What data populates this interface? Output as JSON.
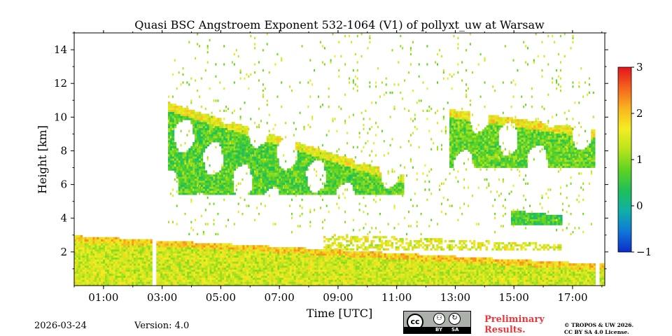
{
  "chart_data": {
    "type": "heatmap",
    "title": "Quasi BSC Angstroem Exponent 532-1064 (V1) of pollyxt_uw at Warsaw",
    "xlabel": "Time [UTC]",
    "ylabel": "Height [km]",
    "xlim_hours": [
      0.0,
      18.1
    ],
    "ylim_km": [
      0,
      15
    ],
    "x_ticks": [
      {
        "label": "01:00",
        "value": 1
      },
      {
        "label": "03:00",
        "value": 3
      },
      {
        "label": "05:00",
        "value": 5
      },
      {
        "label": "07:00",
        "value": 7
      },
      {
        "label": "09:00",
        "value": 9
      },
      {
        "label": "11:00",
        "value": 11
      },
      {
        "label": "13:00",
        "value": 13
      },
      {
        "label": "15:00",
        "value": 15
      },
      {
        "label": "17:00",
        "value": 17
      }
    ],
    "y_ticks": [
      {
        "label": "2",
        "value": 2
      },
      {
        "label": "4",
        "value": 4
      },
      {
        "label": "6",
        "value": 6
      },
      {
        "label": "8",
        "value": 8
      },
      {
        "label": "10",
        "value": 10
      },
      {
        "label": "12",
        "value": 12
      },
      {
        "label": "14",
        "value": 14
      }
    ],
    "colorbar": {
      "range": [
        -1,
        3
      ],
      "ticks": [
        {
          "label": "−1",
          "value": -1
        },
        {
          "label": "0",
          "value": 0
        },
        {
          "label": "1",
          "value": 1
        },
        {
          "label": "2",
          "value": 2
        },
        {
          "label": "3",
          "value": 3
        }
      ],
      "colors": [
        "#0b2cc9",
        "#0f78d8",
        "#0fb0a8",
        "#1fbf5a",
        "#5ed321",
        "#b9e41d",
        "#f2ee23",
        "#f8b41e",
        "#f4641c",
        "#e4141c"
      ]
    },
    "data_gaps_utc": [
      [
        2.6,
        2.78
      ],
      [
        17.75,
        17.9
      ]
    ],
    "regions": [
      {
        "name": "boundary-layer",
        "t_start": 0.0,
        "t_end": 18.1,
        "base_km": 0.0,
        "top_km_start": 2.9,
        "top_km_end": 1.2,
        "mean_value": 1.4
      },
      {
        "name": "residual-aerosol-layer",
        "t_start": 8.5,
        "t_end": 16.6,
        "base_km": 2.1,
        "top_km_start": 3.0,
        "top_km_end": 2.4,
        "mean_value": 1.5
      },
      {
        "name": "cirrus-cloud-main",
        "t_start": 3.2,
        "t_end": 11.2,
        "base_km": 5.4,
        "top_km_start": 10.8,
        "top_km_end": 6.5,
        "mean_value": 0.7
      },
      {
        "name": "cirrus-cloud-east",
        "t_start": 12.8,
        "t_end": 17.75,
        "base_km": 7.0,
        "top_km_start": 10.4,
        "top_km_end": 9.2,
        "mean_value": 0.8
      },
      {
        "name": "thin-layer-4km",
        "t_start": 14.9,
        "t_end": 16.6,
        "base_km": 3.6,
        "top_km_start": 4.4,
        "top_km_end": 4.1,
        "mean_value": 0.6
      },
      {
        "name": "scattered-noise",
        "t_start": 3.2,
        "t_end": 17.8,
        "base_km": 3.0,
        "top_km_start": 15.0,
        "top_km_end": 15.0,
        "mean_value": 1.2
      }
    ]
  },
  "footer": {
    "date": "2026-03-24",
    "version": "Version: 4.0",
    "preliminary_line1": "Preliminary",
    "preliminary_line2": "Results.",
    "copyright_line1": "© TROPOS & UW 2026.",
    "copyright_line2": "CC BY SA 4.0 License."
  },
  "license_logo": {
    "cc": "cc",
    "by": "BY",
    "sa": "SA"
  }
}
